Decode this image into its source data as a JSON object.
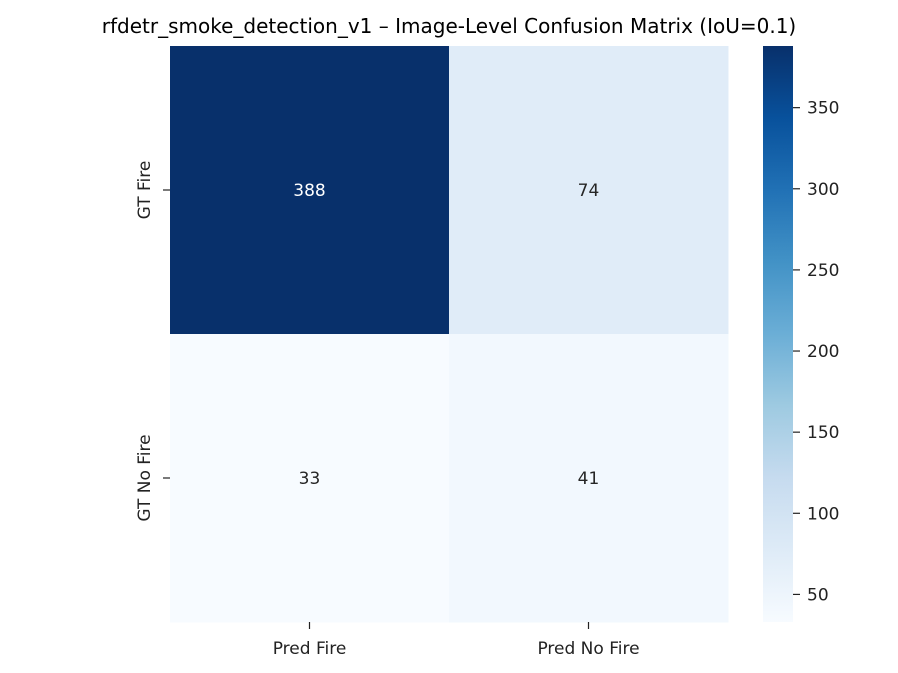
{
  "chart_data": {
    "type": "heatmap",
    "title": "rfdetr_smoke_detection_v1 – Image-Level Confusion Matrix (IoU=0.1)",
    "x_categories": [
      "Pred Fire",
      "Pred No Fire"
    ],
    "y_categories": [
      "GT Fire",
      "GT No Fire"
    ],
    "values": [
      [
        388,
        74
      ],
      [
        33,
        41
      ]
    ],
    "colormap": "Blues",
    "colorbar": {
      "range": [
        33,
        388
      ],
      "ticks": [
        50,
        100,
        150,
        200,
        250,
        300,
        350
      ]
    },
    "grid": false,
    "legend": "colorbar-right"
  }
}
